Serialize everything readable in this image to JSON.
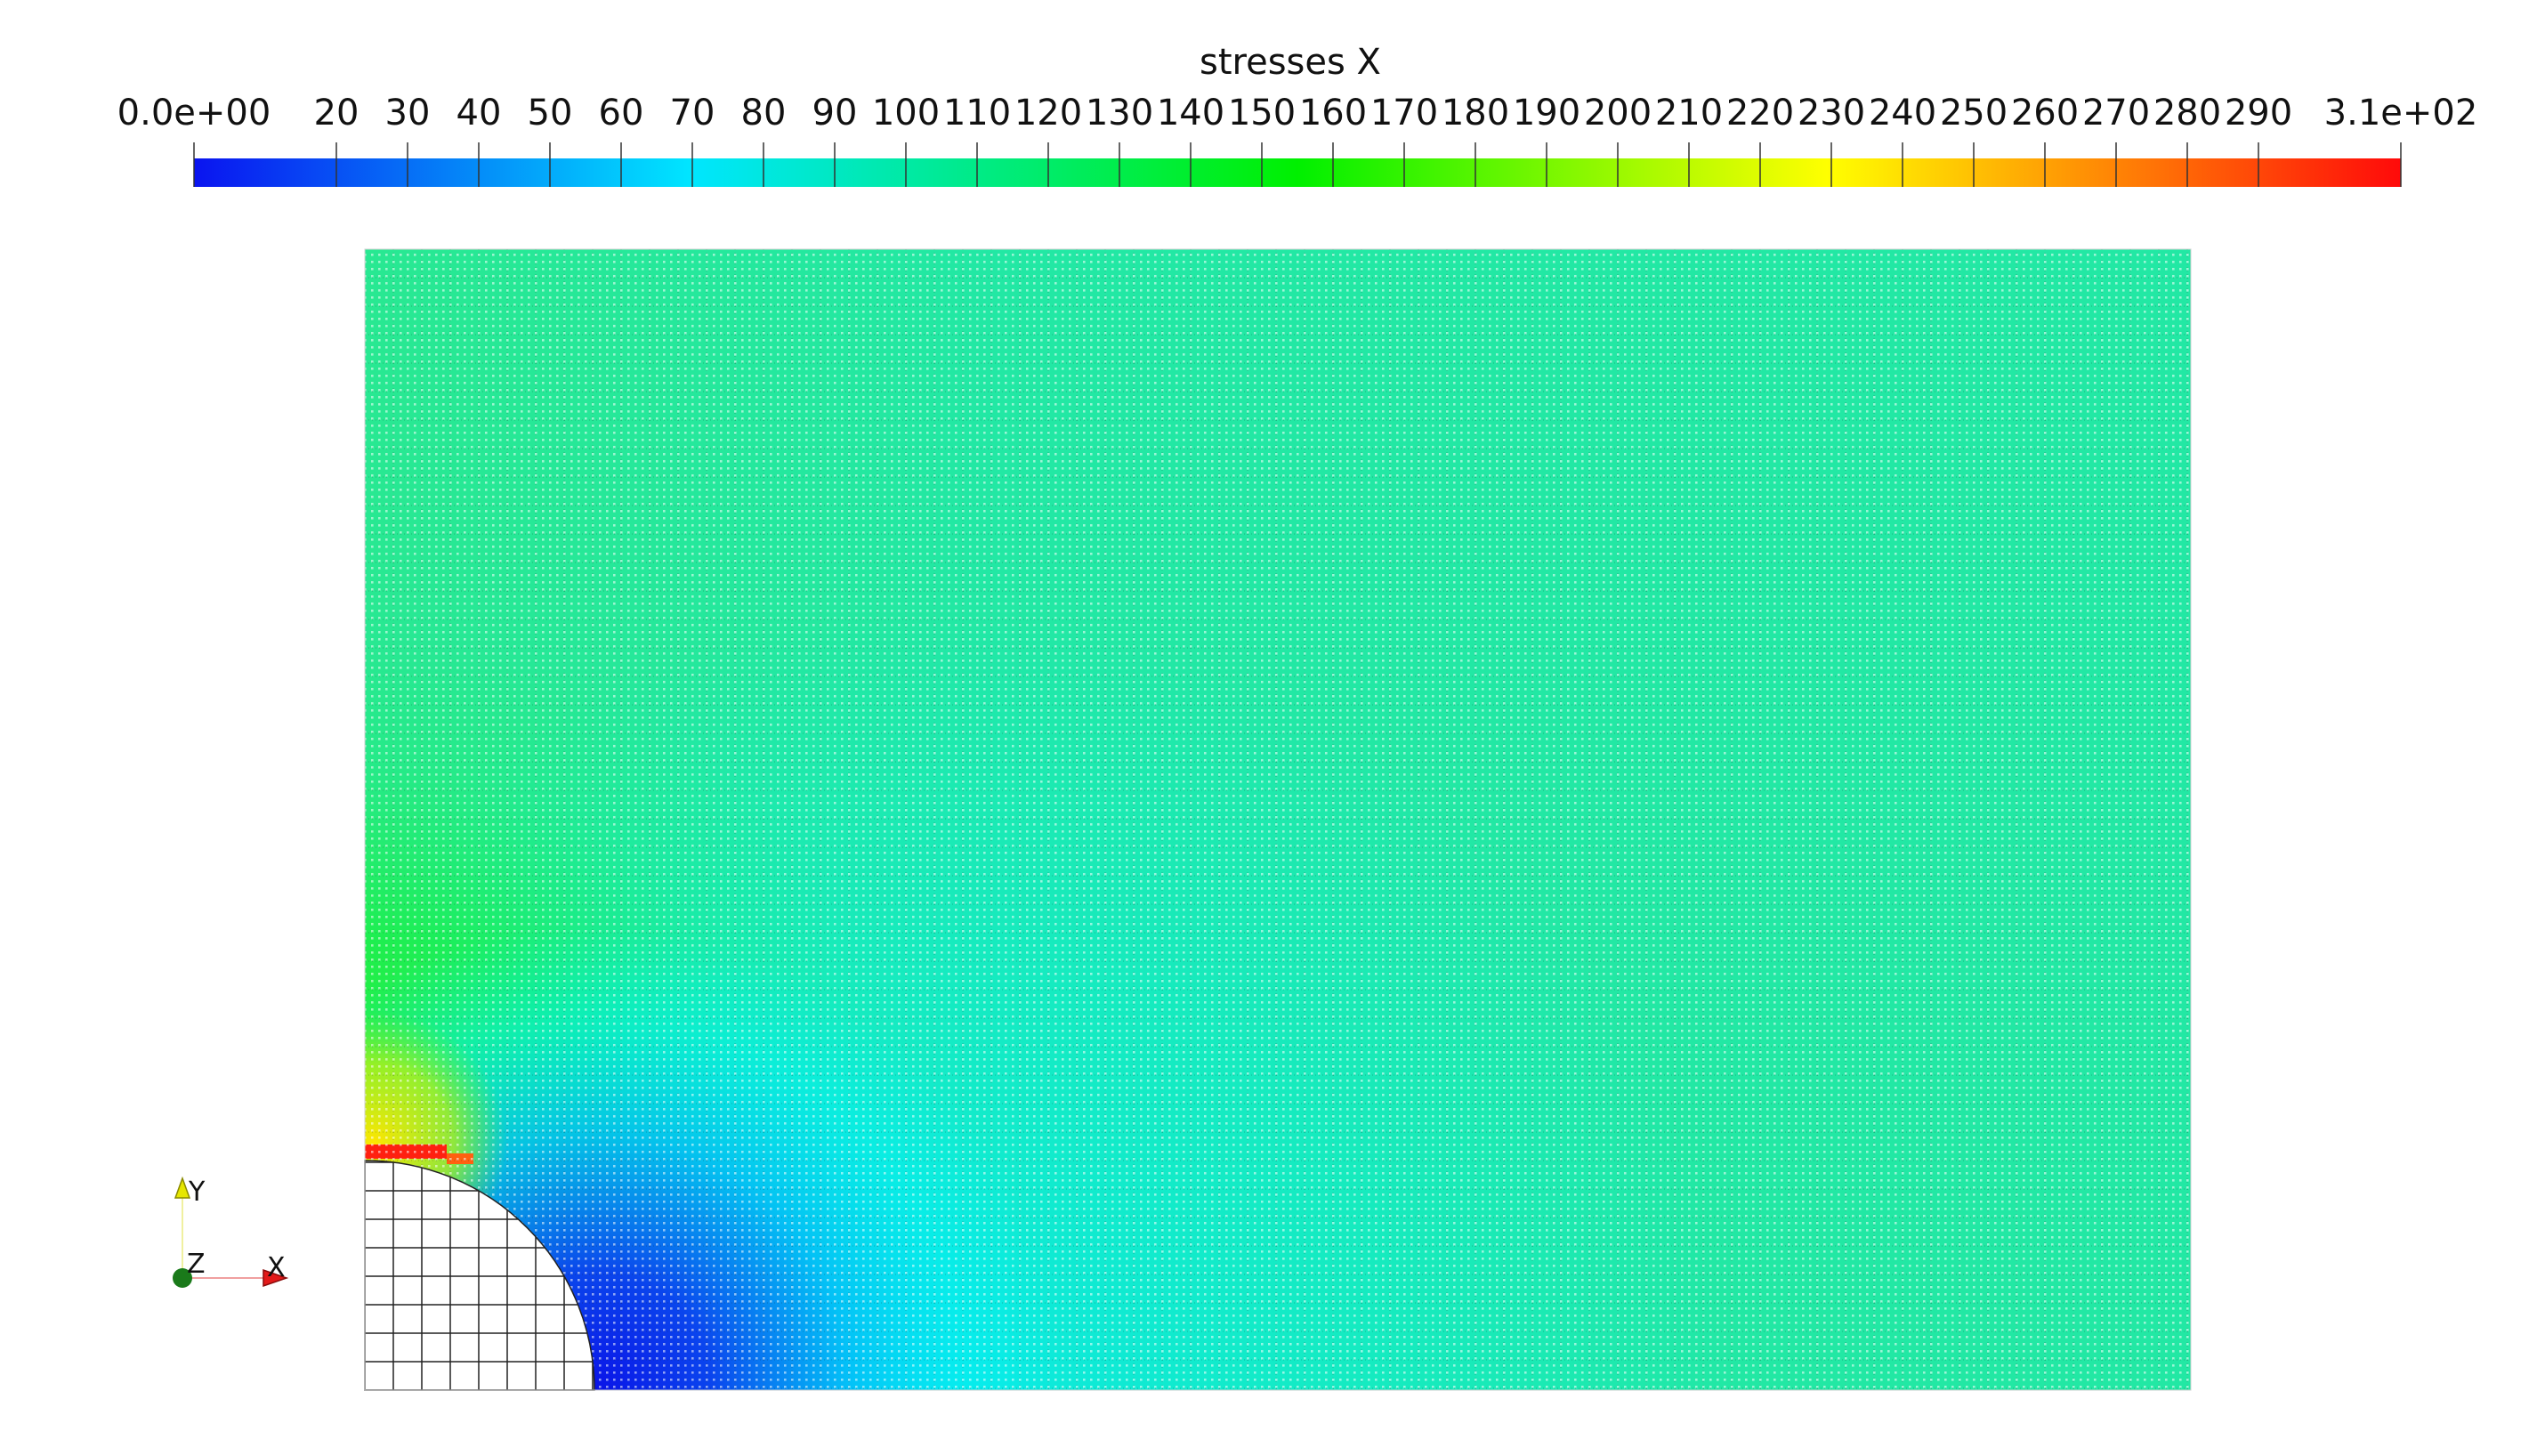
{
  "colorbar": {
    "title": "stresses X",
    "range": [
      0,
      310
    ],
    "tick_values": [
      20,
      30,
      40,
      50,
      60,
      70,
      80,
      90,
      100,
      110,
      120,
      130,
      140,
      150,
      160,
      170,
      180,
      190,
      200,
      210,
      220,
      230,
      240,
      250,
      260,
      270,
      280,
      290
    ],
    "tick_labels": [
      "0.0e+00",
      "20",
      "30",
      "40",
      "50",
      "60",
      "70",
      "80",
      "90",
      "100",
      "110",
      "120",
      "130",
      "140",
      "150",
      "160",
      "170",
      "180",
      "190",
      "200",
      "210",
      "220",
      "230",
      "240",
      "250",
      "260",
      "270",
      "280",
      "290",
      "3.1e+02"
    ],
    "colormap": [
      "#0000ff",
      "#00ffff",
      "#00ff00",
      "#ffff00",
      "#ff0000"
    ],
    "gradient_stops": [
      {
        "value": 0,
        "color": "#0a14f0"
      },
      {
        "value": 70,
        "color": "#00e6ff"
      },
      {
        "value": 155,
        "color": "#00f000"
      },
      {
        "value": 230,
        "color": "#ffff00"
      },
      {
        "value": 310,
        "color": "#ff0a0a"
      }
    ]
  },
  "plot": {
    "field_name": "stresses X",
    "background_color": "#22e6a6",
    "grid_color": "#1a1a1a",
    "mesh_color": "#ffffff",
    "hole_fill": "#ffffff",
    "features": {
      "hole_region": "bottom-left quarter circle",
      "low_stress_region": "bottom edge near hole",
      "high_stress_region": "top of hole"
    }
  },
  "orientation_axes": {
    "x_label": "X",
    "y_label": "Y",
    "z_label": "Z",
    "x_color": "#e31a1a",
    "y_color": "#e6e600",
    "z_color": "#1a7a1a"
  }
}
